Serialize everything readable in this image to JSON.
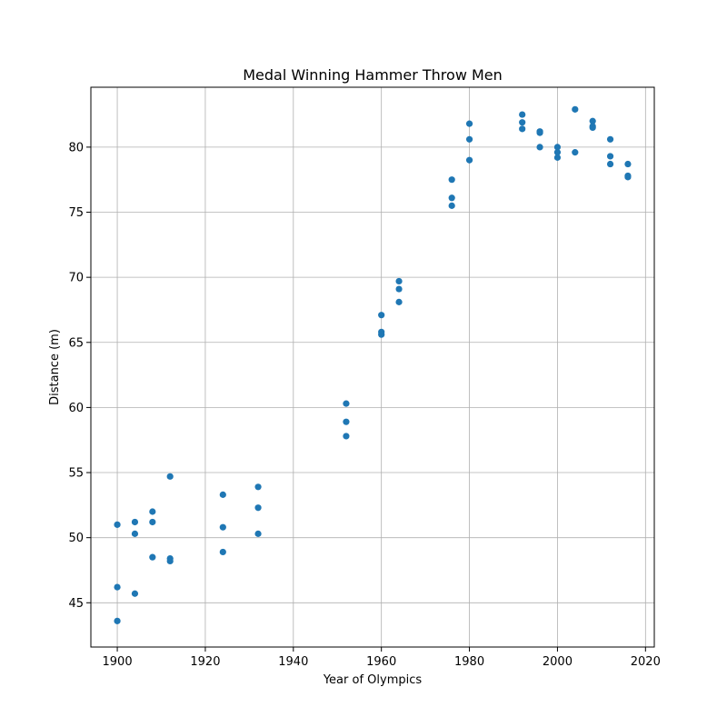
{
  "chart_data": {
    "type": "scatter",
    "title": "Medal Winning Hammer Throw Men",
    "xlabel": "Year of Olympics",
    "ylabel": "Distance (m)",
    "xlim": [
      1894,
      2022
    ],
    "ylim": [
      41.6,
      84.6
    ],
    "xticks": [
      1900,
      1920,
      1940,
      1960,
      1980,
      2000,
      2020
    ],
    "yticks": [
      45,
      50,
      55,
      60,
      65,
      70,
      75,
      80
    ],
    "grid": true,
    "marker_color": "#1f77b4",
    "points": [
      [
        1900,
        51.0
      ],
      [
        1900,
        46.2
      ],
      [
        1900,
        43.6
      ],
      [
        1904,
        51.2
      ],
      [
        1904,
        50.3
      ],
      [
        1904,
        45.7
      ],
      [
        1908,
        52.0
      ],
      [
        1908,
        51.2
      ],
      [
        1908,
        48.5
      ],
      [
        1912,
        54.7
      ],
      [
        1912,
        48.4
      ],
      [
        1912,
        48.2
      ],
      [
        1924,
        53.3
      ],
      [
        1924,
        50.8
      ],
      [
        1924,
        48.9
      ],
      [
        1932,
        53.9
      ],
      [
        1932,
        52.3
      ],
      [
        1932,
        50.3
      ],
      [
        1952,
        60.3
      ],
      [
        1952,
        58.9
      ],
      [
        1952,
        57.8
      ],
      [
        1960,
        67.1
      ],
      [
        1960,
        65.8
      ],
      [
        1960,
        65.6
      ],
      [
        1964,
        69.7
      ],
      [
        1964,
        69.1
      ],
      [
        1964,
        68.1
      ],
      [
        1976,
        77.5
      ],
      [
        1976,
        76.1
      ],
      [
        1976,
        75.5
      ],
      [
        1980,
        81.8
      ],
      [
        1980,
        80.6
      ],
      [
        1980,
        79.0
      ],
      [
        1992,
        82.5
      ],
      [
        1992,
        81.9
      ],
      [
        1992,
        81.4
      ],
      [
        1996,
        81.2
      ],
      [
        1996,
        81.1
      ],
      [
        1996,
        80.0
      ],
      [
        2000,
        80.0
      ],
      [
        2000,
        79.6
      ],
      [
        2000,
        79.2
      ],
      [
        2004,
        82.9
      ],
      [
        2004,
        79.6
      ],
      [
        2008,
        82.0
      ],
      [
        2008,
        81.6
      ],
      [
        2008,
        81.5
      ],
      [
        2012,
        80.6
      ],
      [
        2012,
        79.3
      ],
      [
        2012,
        78.7
      ],
      [
        2016,
        78.7
      ],
      [
        2016,
        77.8
      ],
      [
        2016,
        77.7
      ]
    ]
  }
}
